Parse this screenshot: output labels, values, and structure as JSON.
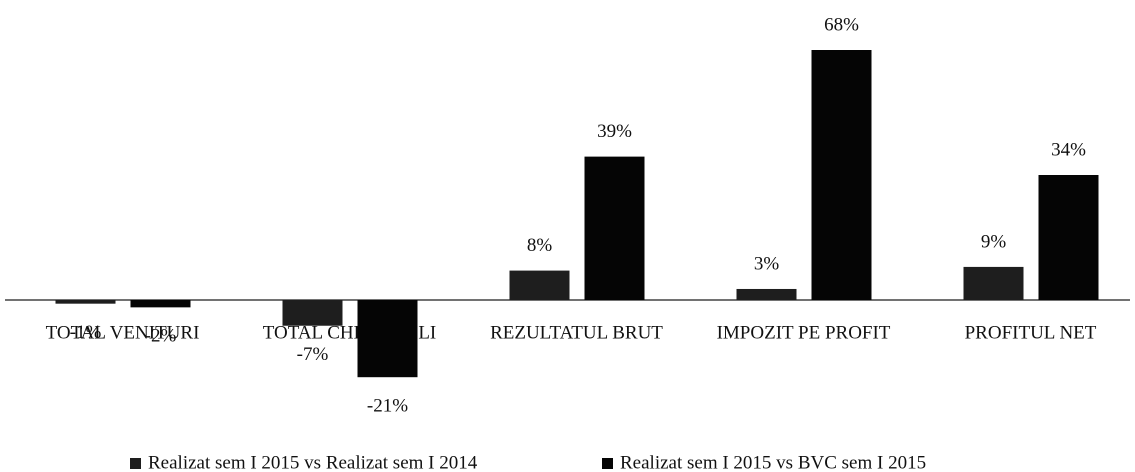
{
  "chart_data": {
    "type": "bar",
    "categories": [
      "TOTAL VENITURI",
      "TOTAL CHELTUIELI",
      "REZULTATUL BRUT",
      "IMPOZIT PE PROFIT",
      "PROFITUL NET"
    ],
    "series": [
      {
        "name": "Realizat sem I 2015 vs Realizat sem I 2014",
        "color": "#1e1e1e",
        "values": [
          -1,
          -7,
          8,
          3,
          9
        ],
        "value_labels": [
          "-1%",
          "-7%",
          "8%",
          "3%",
          "9%"
        ]
      },
      {
        "name": "Realizat sem I 2015 vs BVC sem I 2015",
        "color": "#050505",
        "values": [
          -2,
          -21,
          39,
          68,
          34
        ],
        "value_labels": [
          "-2%",
          "-21%",
          "39%",
          "68%",
          "34%"
        ]
      }
    ],
    "legend": "bottom"
  }
}
